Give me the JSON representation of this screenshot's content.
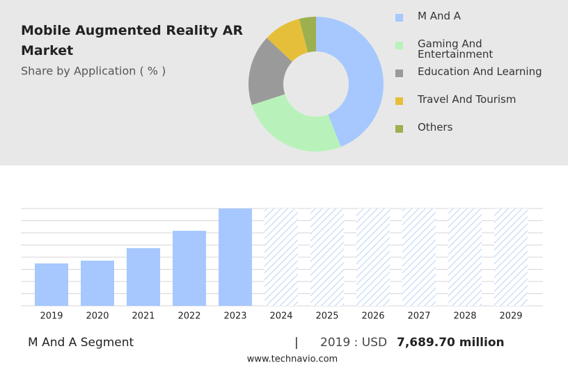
{
  "chart_data": [
    {
      "type": "pie",
      "title": "Mobile Augmented Reality AR Market",
      "subtitle": "Share by Application ( % )",
      "categories": [
        "M And A",
        "Gaming And Entertainment",
        "Education And Learning",
        "Travel And Tourism",
        "Others"
      ],
      "values": [
        44,
        26,
        17,
        9,
        4
      ],
      "colors": [
        "#a6c8ff",
        "#b8f2ba",
        "#9a9a9a",
        "#e6bf3a",
        "#9cb050"
      ],
      "donut": true
    },
    {
      "type": "bar",
      "categories": [
        "2019",
        "2020",
        "2021",
        "2022",
        "2023",
        "2024",
        "2025",
        "2026",
        "2027",
        "2028",
        "2029"
      ],
      "values": [
        7689.7,
        8194,
        10463,
        13615,
        17649,
        null,
        null,
        null,
        null,
        null,
        null
      ],
      "color": "#a6c8ff",
      "ylim": [
        0,
        17649
      ],
      "grid": true
    }
  ],
  "footer": {
    "segment": "M And A Segment",
    "separator": "|",
    "year_label": "2019 : USD",
    "value": "7,689.70 million",
    "source": "www.technavio.com"
  }
}
